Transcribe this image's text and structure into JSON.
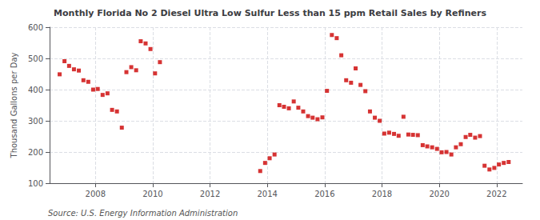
{
  "chart_data": {
    "type": "scatter",
    "title": "Monthly Florida No 2 Diesel Ultra Low Sulfur Less than 15 ppm Retail Sales by Refiners",
    "ylabel": "Thousand Gallons per Day",
    "annotations": [
      "Source: U.S. Energy Information Administration"
    ],
    "color": "#cc0000",
    "marker": "square",
    "grid": true,
    "xlim": [
      2006.4,
      2022.9
    ],
    "xticks": [
      2008,
      2010,
      2012,
      2014,
      2016,
      2018,
      2020,
      2022
    ],
    "ylim": [
      100,
      600
    ],
    "yticks": [
      100,
      200,
      300,
      400,
      500,
      600
    ],
    "x": [
      2006.75,
      2006.92,
      2007.08,
      2007.25,
      2007.42,
      2007.58,
      2007.75,
      2007.92,
      2008.08,
      2008.25,
      2008.42,
      2008.58,
      2008.75,
      2008.92,
      2009.08,
      2009.25,
      2009.42,
      2009.58,
      2009.75,
      2009.92,
      2010.08,
      2010.25,
      2013.75,
      2013.92,
      2014.08,
      2014.25,
      2014.42,
      2014.58,
      2014.75,
      2014.92,
      2015.08,
      2015.25,
      2015.42,
      2015.58,
      2015.75,
      2015.92,
      2016.08,
      2016.25,
      2016.42,
      2016.58,
      2016.75,
      2016.92,
      2017.08,
      2017.25,
      2017.42,
      2017.58,
      2017.75,
      2017.92,
      2018.08,
      2018.25,
      2018.42,
      2018.58,
      2018.75,
      2018.92,
      2019.08,
      2019.25,
      2019.42,
      2019.58,
      2019.75,
      2019.92,
      2020.08,
      2020.25,
      2020.42,
      2020.58,
      2020.75,
      2020.92,
      2021.08,
      2021.25,
      2021.42,
      2021.58,
      2021.75,
      2021.92,
      2022.08,
      2022.25,
      2022.42
    ],
    "values": [
      449,
      491,
      476,
      465,
      461,
      430,
      425,
      400,
      402,
      383,
      388,
      335,
      330,
      278,
      456,
      472,
      462,
      555,
      548,
      530,
      452,
      488,
      139,
      165,
      180,
      192,
      350,
      345,
      340,
      362,
      342,
      330,
      315,
      310,
      305,
      311,
      396,
      575,
      565,
      510,
      430,
      422,
      468,
      415,
      395,
      330,
      310,
      300,
      259,
      262,
      258,
      252,
      313,
      256,
      255,
      254,
      222,
      218,
      215,
      210,
      199,
      200,
      192,
      215,
      225,
      248,
      255,
      246,
      251,
      156,
      144,
      149,
      160,
      165,
      168
    ]
  }
}
